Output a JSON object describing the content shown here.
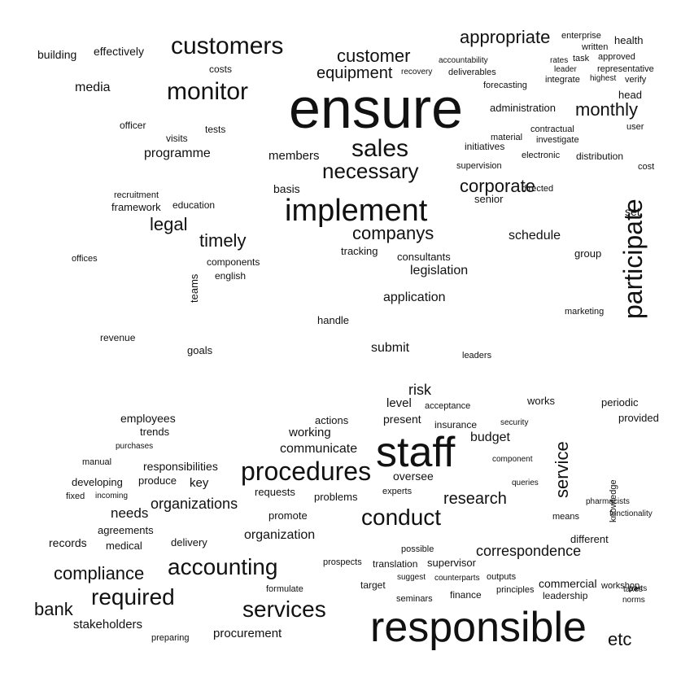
{
  "colors": {
    "text": "#111111",
    "background": "#ffffff"
  },
  "words": {
    "ensure": "ensure",
    "responsible": "responsible",
    "staff": "staff",
    "implement": "implement",
    "procedures": "procedures",
    "customers": "customers",
    "monitor": "monitor",
    "sales": "sales",
    "participate": "participate",
    "conduct": "conduct",
    "accounting": "accounting",
    "services": "services",
    "required": "required",
    "necessary": "necessary",
    "customer": "customer",
    "appropriate": "appropriate",
    "equipment": "equipment",
    "companys": "companys",
    "legal": "legal",
    "timely": "timely",
    "corporate": "corporate",
    "service": "service",
    "monthly": "monthly",
    "bank": "bank",
    "compliance": "compliance",
    "etc": "etc",
    "research": "research",
    "correspondence": "correspondence",
    "organizations": "organizations",
    "organization": "organization",
    "communicate": "communicate",
    "legislation": "legislation",
    "application": "application",
    "submit": "submit",
    "schedule": "schedule",
    "programme": "programme",
    "media": "media",
    "stakeholders": "stakeholders",
    "procurement": "procurement",
    "finance": "finance",
    "commercial": "commercial",
    "health": "health",
    "members": "members",
    "needs": "needs",
    "budget": "budget",
    "risk": "risk",
    "working": "working",
    "employees": "employees",
    "responsibilities": "responsibilities",
    "administration": "administration",
    "effectively": "effectively",
    "building": "building",
    "customers_small": "verify",
    "supervisor": "supervisor",
    "records": "records",
    "delivery": "delivery",
    "key": "key",
    "works": "works",
    "periodic": "periodic",
    "provided": "provided",
    "different": "different",
    "leadership": "leadership",
    "head": "head",
    "manage": "written",
    "approved": "approved",
    "user": "user",
    "cost": "cost",
    "set": "set",
    "group": "group",
    "level": "level",
    "present": "present",
    "oversee": "oversee",
    "experts": "experts",
    "requests": "requests",
    "promote": "promote",
    "problems": "problems",
    "agreements": "agreements",
    "medical": "medical",
    "developing": "developing",
    "produce": "produce",
    "trends": "trends",
    "insurance": "insurance",
    "actions": "actions",
    "consultants": "consultants",
    "tracking": "tracking",
    "basis": "basis",
    "education": "education",
    "framework": "framework",
    "recruitment": "recruitment",
    "officer": "officer",
    "offices": "offices",
    "visits": "visits",
    "tests": "tests",
    "costs": "costs",
    "recovery": "recovery",
    "deliverables": "deliverables",
    "initiatives": "initiatives",
    "supervision": "supervision",
    "directed": "directed",
    "senior": "senior",
    "electronic": "electronic",
    "distribution": "distribution",
    "handle": "handle",
    "components": "components",
    "english": "english",
    "goals": "goals",
    "teams": "teams",
    "revenue": "revenue",
    "marketing": "marketing",
    "translation": "translation",
    "target": "target",
    "seminars": "seminars",
    "outputs": "outputs",
    "principles": "principles",
    "workshop": "workshop",
    "component": "component",
    "queries": "queries",
    "manual": "manual",
    "fixed": "fixed",
    "incoming": "incoming",
    "purchases": "purchases",
    "preparing": "preparing",
    "formulate": "formulate",
    "prospects": "prospects",
    "possible": "possible",
    "suggest": "suggest",
    "counterparts": "counterparts",
    "leaders": "leaders",
    "security": "security",
    "acceptance": "acceptance",
    "materials": "material",
    "investigate": "investigate",
    "contractual": "contractual",
    "forecasting": "forecasting",
    "accountability": "accountability",
    "integrate": "integrate",
    "enterprise": "enterprise",
    "task": "task",
    "rates": "rates",
    "leader": "leader",
    "representative": "representative",
    "highest": "highest",
    "knowledge": "knowledge",
    "means": "means",
    "functionality": "functionality",
    "pharmacists": "pharmacists",
    "taxes": "taxes",
    "parts": "parts",
    "norms": "norms"
  }
}
